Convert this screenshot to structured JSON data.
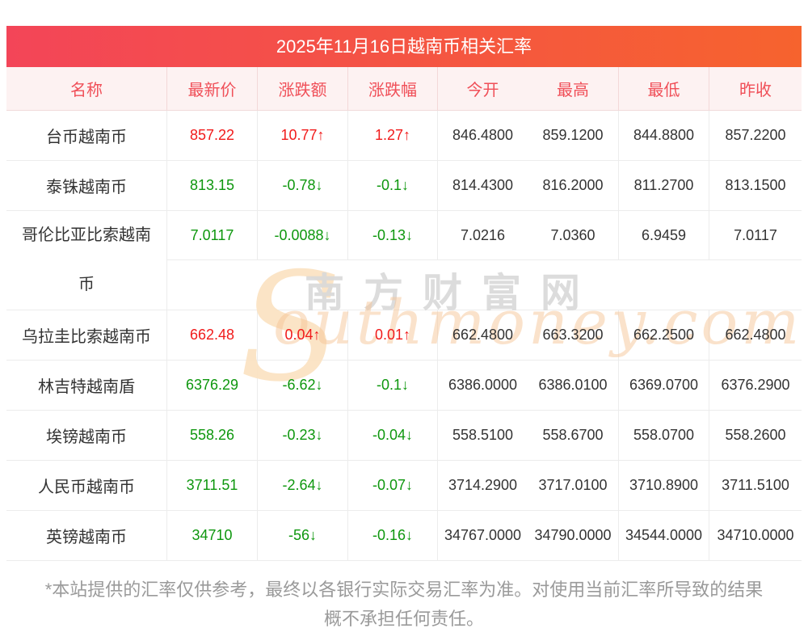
{
  "chart_data": {
    "type": "table",
    "title": "2025年11月16日越南币相关汇率",
    "columns": [
      "名称",
      "最新价",
      "涨跌额",
      "涨跌幅",
      "今开",
      "最高",
      "最低",
      "昨收"
    ],
    "rows": [
      {
        "name": "台币越南币",
        "latest": "857.22",
        "change": "10.77↑",
        "change_pct": "1.27↑",
        "open": "846.4800",
        "high": "859.1200",
        "low": "844.8800",
        "prev_close": "857.2200",
        "trend": "up",
        "tall": false
      },
      {
        "name": "泰铢越南币",
        "latest": "813.15",
        "change": "-0.78↓",
        "change_pct": "-0.1↓",
        "open": "814.4300",
        "high": "816.2000",
        "low": "811.2700",
        "prev_close": "813.1500",
        "trend": "down",
        "tall": false
      },
      {
        "name": "哥伦比亚比索越南币",
        "latest": "7.0117",
        "change": "-0.0088↓",
        "change_pct": "-0.13↓",
        "open": "7.0216",
        "high": "7.0360",
        "low": "6.9459",
        "prev_close": "7.0117",
        "trend": "down",
        "tall": true
      },
      {
        "name": "乌拉圭比索越南币",
        "latest": "662.48",
        "change": "0.04↑",
        "change_pct": "0.01↑",
        "open": "662.4800",
        "high": "663.3200",
        "low": "662.2500",
        "prev_close": "662.4800",
        "trend": "up",
        "tall": false
      },
      {
        "name": "林吉特越南盾",
        "latest": "6376.29",
        "change": "-6.62↓",
        "change_pct": "-0.1↓",
        "open": "6386.0000",
        "high": "6386.0100",
        "low": "6369.0700",
        "prev_close": "6376.2900",
        "trend": "down",
        "tall": false
      },
      {
        "name": "埃镑越南币",
        "latest": "558.26",
        "change": "-0.23↓",
        "change_pct": "-0.04↓",
        "open": "558.5100",
        "high": "558.6700",
        "low": "558.0700",
        "prev_close": "558.2600",
        "trend": "down",
        "tall": false
      },
      {
        "name": "人民币越南币",
        "latest": "3711.51",
        "change": "-2.64↓",
        "change_pct": "-0.07↓",
        "open": "3714.2900",
        "high": "3717.0100",
        "low": "3710.8900",
        "prev_close": "3711.5100",
        "trend": "down",
        "tall": false
      },
      {
        "name": "英镑越南币",
        "latest": "34710",
        "change": "-56↓",
        "change_pct": "-0.16↓",
        "open": "34767.0000",
        "high": "34790.0000",
        "low": "34544.0000",
        "prev_close": "34710.0000",
        "trend": "down",
        "tall": false
      }
    ]
  },
  "watermark": {
    "s": "S",
    "cn": "南方财富网",
    "en": "outhmoney.com"
  },
  "disclaimer_lines": [
    "*本站提供的汇率仅供参考，最终以各银行实际交易汇率为准。对使用当前汇率所导致的结果",
    "概不承担任何责任。"
  ],
  "colors": {
    "up": "#f11b1b",
    "down": "#0e970e",
    "title_gradient_left": "#f34558",
    "title_gradient_right": "#f6632e",
    "header_bg": "#fdf2f2",
    "header_text": "#f04f58",
    "border": "#ececec",
    "footer_text": "#9a9a9a",
    "watermark_gray": "#d9d9d9",
    "watermark_orange": "#f6c698"
  }
}
